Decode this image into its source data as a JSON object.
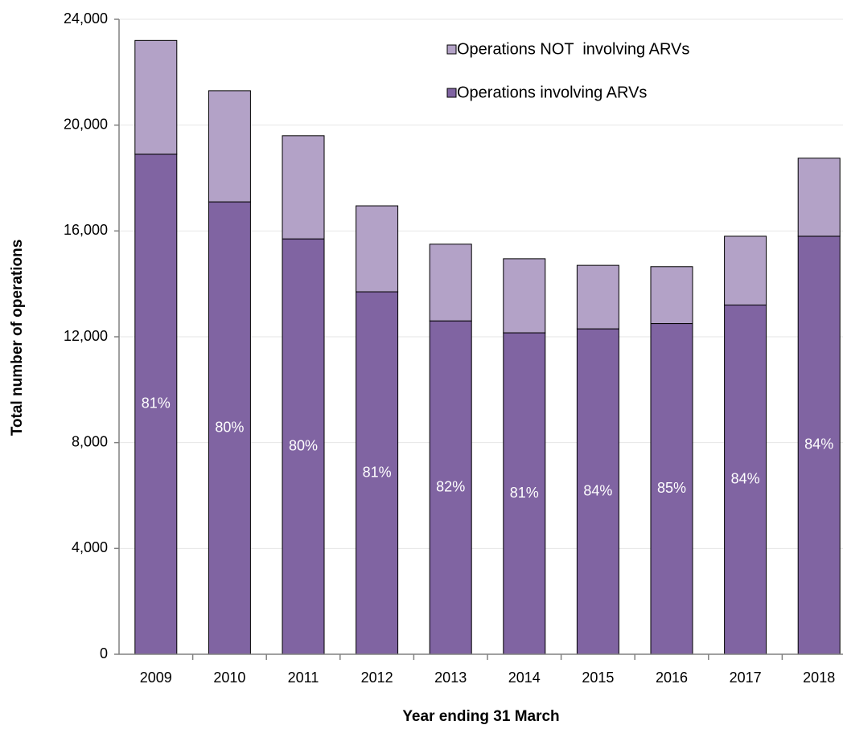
{
  "chart_data": {
    "type": "stacked_bar",
    "x_label": "Year ending 31 March",
    "y_label": "Total number of operations",
    "categories": [
      "2009",
      "2010",
      "2011",
      "2012",
      "2013",
      "2014",
      "2015",
      "2016",
      "2017",
      "2018"
    ],
    "series": [
      {
        "name": "Operations involving ARVs",
        "color": "#8064a2",
        "values": [
          18900,
          17100,
          15700,
          13700,
          12600,
          12150,
          12300,
          12500,
          13200,
          15800
        ]
      },
      {
        "name": "Operations NOT  involving ARVs",
        "color": "#b3a2c7",
        "values": [
          4300,
          4200,
          3900,
          3250,
          2900,
          2800,
          2400,
          2150,
          2600,
          2950
        ]
      }
    ],
    "share_labels": [
      "81%",
      "80%",
      "80%",
      "81%",
      "82%",
      "81%",
      "84%",
      "85%",
      "84%",
      "84%"
    ],
    "ylim": [
      0,
      24000
    ],
    "yticks": [
      0,
      {
        "value": 4000,
        "label": "4,000"
      },
      {
        "value": 8000,
        "label": "8,000"
      },
      {
        "value": 12000,
        "label": "12,000"
      },
      {
        "value": 16000,
        "label": "16,000"
      },
      {
        "value": 20000,
        "label": "20,000"
      },
      {
        "value": 24000,
        "label": "24,000"
      }
    ],
    "grid": true,
    "legend": "top-right"
  }
}
